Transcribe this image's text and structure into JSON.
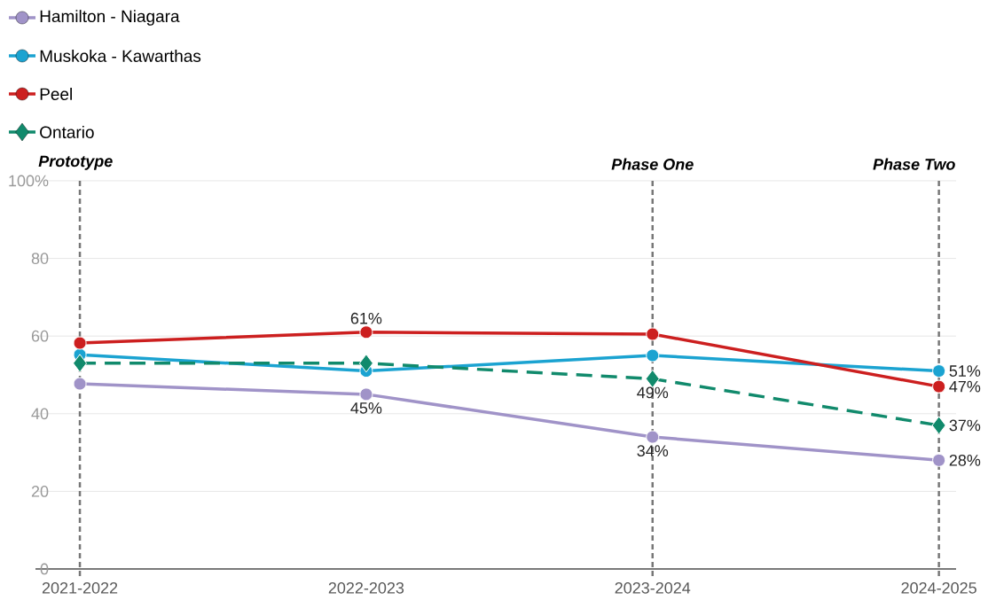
{
  "chart_data": {
    "type": "line",
    "categories": [
      "2021-2022",
      "2022-2023",
      "2023-2024",
      "2024-2025"
    ],
    "series": [
      {
        "name": "Hamilton - Niagara",
        "color": "#a093c8",
        "marker": "circle",
        "line_style": "solid",
        "values": [
          47.7,
          45,
          34,
          28
        ],
        "value_labels": [
          null,
          "45%",
          "34%",
          "28%"
        ]
      },
      {
        "name": "Muskoka - Kawarthas",
        "color": "#1ba3d1",
        "marker": "circle",
        "line_style": "solid",
        "values": [
          55.2,
          51,
          55,
          51
        ],
        "value_labels": [
          null,
          null,
          null,
          "51%"
        ]
      },
      {
        "name": "Peel",
        "color": "#cc1f1f",
        "marker": "circle",
        "line_style": "solid",
        "values": [
          58.2,
          61,
          60.5,
          47
        ],
        "value_labels": [
          null,
          "61%",
          null,
          "47%"
        ]
      },
      {
        "name": "Ontario",
        "color": "#118a6c",
        "marker": "diamond",
        "line_style": "dashed",
        "values": [
          53,
          53,
          49,
          37
        ],
        "value_labels": [
          null,
          null,
          "49%",
          "37%"
        ]
      }
    ],
    "ylim": [
      0,
      100
    ],
    "yticks": [
      0,
      20,
      40,
      60,
      80,
      {
        "value": 100,
        "label": "100%"
      }
    ],
    "grid": "y",
    "legend": "top left",
    "ref_lines": [
      {
        "axis": "x",
        "value": "2021-2022",
        "label": "Prototype",
        "color": "#777777",
        "line_style": "dashed"
      },
      {
        "axis": "x",
        "value": "2023-2024",
        "label": "Phase One",
        "color": "#777777",
        "line_style": "dashed"
      },
      {
        "axis": "x",
        "value": "2024-2025",
        "label": "Phase Two",
        "color": "#777777",
        "line_style": "dashed"
      }
    ]
  }
}
